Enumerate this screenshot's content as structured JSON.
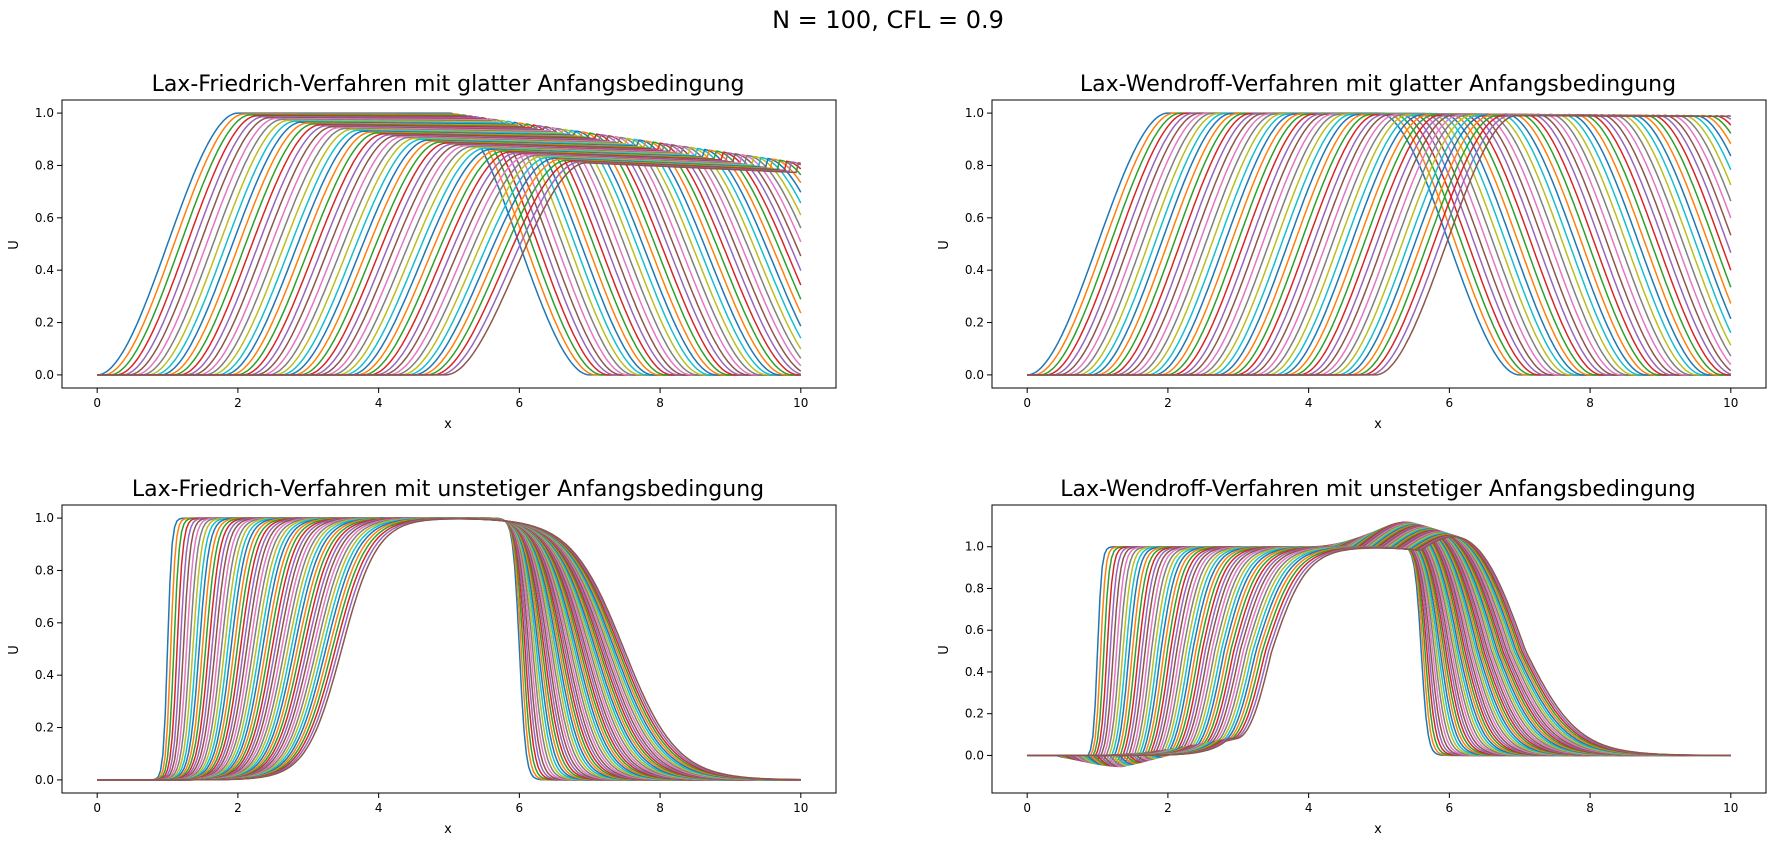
{
  "suptitle": "N = 100, CFL = 0.9",
  "colors": [
    "#1f77b4",
    "#ff7f0e",
    "#2ca02c",
    "#d62728",
    "#9467bd",
    "#8c564b",
    "#e377c2",
    "#7f7f7f",
    "#bcbd22",
    "#17becf"
  ],
  "chart_data": [
    {
      "type": "line",
      "title": "Lax-Friedrich-Verfahren mit glatter Anfangsbedingung",
      "xlabel": "x",
      "ylabel": "U",
      "xlim": [
        -0.5,
        10.5
      ],
      "ylim": [
        -0.05,
        1.05
      ],
      "xticks": [
        0,
        2,
        4,
        6,
        8,
        10
      ],
      "xtick_labels": [
        "0",
        "2",
        "4",
        "6",
        "8",
        "10"
      ],
      "yticks": [
        0.0,
        0.2,
        0.4,
        0.6,
        0.8,
        1.0
      ],
      "ytick_labels": [
        "0.0",
        "0.2",
        "0.4",
        "0.6",
        "0.8",
        "1.0"
      ],
      "grid": false,
      "initial_condition": "smooth",
      "profile": {
        "left_edge": 0.0,
        "rise_width": 2.0,
        "plateau_width": 3.0,
        "fall_width": 2.0,
        "start_peak": 1.0,
        "end_peak": 0.81
      },
      "shift_per_step": 0.09,
      "num_curves": 56
    },
    {
      "type": "line",
      "title": "Lax-Wendroff-Verfahren mit glatter Anfangsbedingung",
      "xlabel": "x",
      "ylabel": "U",
      "xlim": [
        -0.5,
        10.5
      ],
      "ylim": [
        -0.05,
        1.05
      ],
      "xticks": [
        0,
        2,
        4,
        6,
        8,
        10
      ],
      "xtick_labels": [
        "0",
        "2",
        "4",
        "6",
        "8",
        "10"
      ],
      "yticks": [
        0.0,
        0.2,
        0.4,
        0.6,
        0.8,
        1.0
      ],
      "ytick_labels": [
        "0.0",
        "0.2",
        "0.4",
        "0.6",
        "0.8",
        "1.0"
      ],
      "grid": false,
      "initial_condition": "smooth",
      "profile": {
        "left_edge": 0.0,
        "rise_width": 2.0,
        "plateau_width": 3.0,
        "fall_width": 2.0,
        "start_peak": 1.0,
        "end_peak": 0.99
      },
      "shift_per_step": 0.09,
      "num_curves": 56
    },
    {
      "type": "line",
      "title": "Lax-Friedrich-Verfahren mit unstetiger Anfangsbedingung",
      "xlabel": "x",
      "ylabel": "U",
      "xlim": [
        -0.5,
        10.5
      ],
      "ylim": [
        -0.05,
        1.05
      ],
      "xticks": [
        0,
        2,
        4,
        6,
        8,
        10
      ],
      "xtick_labels": [
        "0",
        "2",
        "4",
        "6",
        "8",
        "10"
      ],
      "yticks": [
        0.0,
        0.2,
        0.4,
        0.6,
        0.8,
        1.0
      ],
      "ytick_labels": [
        "0.0",
        "0.2",
        "0.4",
        "0.6",
        "0.8",
        "1.0"
      ],
      "grid": false,
      "initial_condition": "discontinuous",
      "profile": {
        "jump_up": 1.0,
        "jump_down": 6.0,
        "height": 1.0
      },
      "shift_per_step": 0.045,
      "num_curves": 56
    },
    {
      "type": "line",
      "title": "Lax-Wendroff-Verfahren mit unstetiger Anfangsbedingung",
      "xlabel": "x",
      "ylabel": "U",
      "xlim": [
        -0.5,
        10.5
      ],
      "ylim": [
        -0.18,
        1.2
      ],
      "xticks": [
        0,
        2,
        4,
        6,
        8,
        10
      ],
      "xtick_labels": [
        "0",
        "2",
        "4",
        "6",
        "8",
        "10"
      ],
      "yticks": [
        0.0,
        0.2,
        0.4,
        0.6,
        0.8,
        1.0
      ],
      "ytick_labels": [
        "0.0",
        "0.2",
        "0.4",
        "0.6",
        "0.8",
        "1.0"
      ],
      "grid": false,
      "initial_condition": "discontinuous",
      "profile": {
        "jump_up": 1.0,
        "jump_down": 5.6,
        "height": 1.0,
        "overshoot": 0.13,
        "undershoot": -0.13
      },
      "shift_per_step": 0.045,
      "num_curves": 56
    }
  ]
}
